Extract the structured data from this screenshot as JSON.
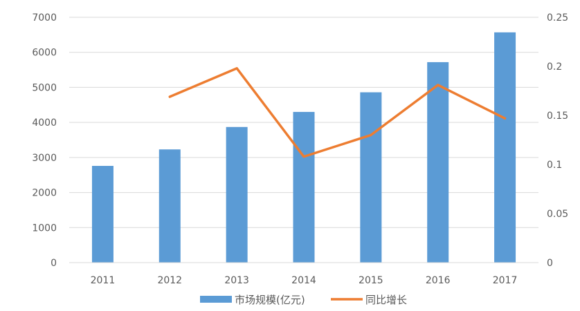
{
  "chart_data": {
    "type": "bar",
    "categories": [
      "2011",
      "2012",
      "2013",
      "2014",
      "2015",
      "2016",
      "2017"
    ],
    "series": [
      {
        "name": "市场规模(亿元)",
        "type": "bar",
        "axis": "left",
        "color": "#5b9bd5",
        "values": [
          2760,
          3230,
          3870,
          4300,
          4860,
          5720,
          6570
        ]
      },
      {
        "name": "同比增长",
        "type": "line",
        "axis": "right",
        "color": "#ed7d31",
        "values": [
          null,
          0.169,
          0.198,
          0.108,
          0.13,
          0.181,
          0.147
        ]
      }
    ],
    "y_left": {
      "min": 0,
      "max": 7000,
      "ticks": [
        "0",
        "1000",
        "2000",
        "3000",
        "4000",
        "5000",
        "6000",
        "7000"
      ]
    },
    "y_right": {
      "min": 0,
      "max": 0.25,
      "ticks": [
        "0",
        "0.05",
        "0.1",
        "0.15",
        "0.2",
        "0.25"
      ]
    },
    "grid": true,
    "legend_position": "bottom"
  }
}
